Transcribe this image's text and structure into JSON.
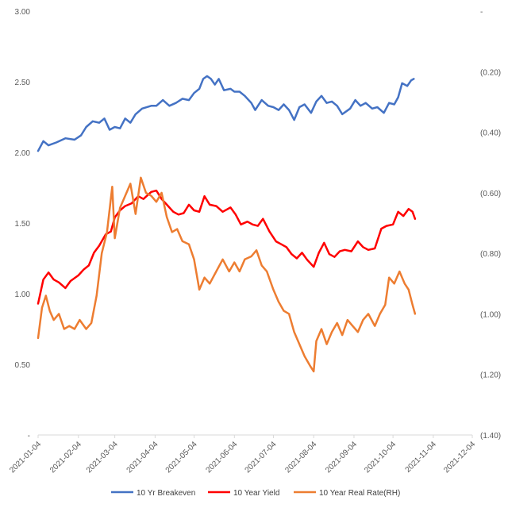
{
  "chart_data": {
    "type": "line",
    "title": "",
    "xlabel": "",
    "ylabel": "",
    "x_ticks": [
      "2021-01-04",
      "2021-02-04",
      "2021-03-04",
      "2021-04-04",
      "2021-05-04",
      "2021-06-04",
      "2021-07-04",
      "2021-08-04",
      "2021-09-04",
      "2021-10-04",
      "2021-11-04",
      "2021-12-04"
    ],
    "xlim": [
      "2021-01-04",
      "2021-12-04"
    ],
    "ylim_left": [
      0,
      3
    ],
    "ylim_right": [
      -1.4,
      0.0
    ],
    "left_ticks": [
      "3.00",
      "2.50",
      "2.00",
      "1.50",
      "1.00",
      "0.50",
      "-"
    ],
    "right_ticks": [
      "-",
      "(0.20)",
      "(0.40)",
      "(0.60)",
      "(0.80)",
      "(1.00)",
      "(1.20)",
      "(1.40)"
    ],
    "grid": false,
    "legend_position": "bottom",
    "series": [
      {
        "name": "10 Yr Breakeven",
        "axis": "left",
        "color": "#4472C4",
        "points": [
          [
            "2021-01-04",
            2.01
          ],
          [
            "2021-01-08",
            2.08
          ],
          [
            "2021-01-12",
            2.05
          ],
          [
            "2021-01-18",
            2.07
          ],
          [
            "2021-01-25",
            2.1
          ],
          [
            "2021-02-01",
            2.09
          ],
          [
            "2021-02-06",
            2.12
          ],
          [
            "2021-02-10",
            2.18
          ],
          [
            "2021-02-15",
            2.22
          ],
          [
            "2021-02-20",
            2.21
          ],
          [
            "2021-02-24",
            2.24
          ],
          [
            "2021-02-28",
            2.16
          ],
          [
            "2021-03-04",
            2.18
          ],
          [
            "2021-03-08",
            2.17
          ],
          [
            "2021-03-12",
            2.24
          ],
          [
            "2021-03-16",
            2.21
          ],
          [
            "2021-03-20",
            2.27
          ],
          [
            "2021-03-25",
            2.31
          ],
          [
            "2021-04-01",
            2.33
          ],
          [
            "2021-04-05",
            2.33
          ],
          [
            "2021-04-10",
            2.37
          ],
          [
            "2021-04-15",
            2.33
          ],
          [
            "2021-04-20",
            2.35
          ],
          [
            "2021-04-25",
            2.38
          ],
          [
            "2021-04-30",
            2.37
          ],
          [
            "2021-05-04",
            2.42
          ],
          [
            "2021-05-08",
            2.45
          ],
          [
            "2021-05-11",
            2.52
          ],
          [
            "2021-05-14",
            2.54
          ],
          [
            "2021-05-17",
            2.52
          ],
          [
            "2021-05-20",
            2.48
          ],
          [
            "2021-05-23",
            2.52
          ],
          [
            "2021-05-27",
            2.44
          ],
          [
            "2021-06-01",
            2.45
          ],
          [
            "2021-06-04",
            2.43
          ],
          [
            "2021-06-08",
            2.43
          ],
          [
            "2021-06-12",
            2.4
          ],
          [
            "2021-06-17",
            2.35
          ],
          [
            "2021-06-20",
            2.3
          ],
          [
            "2021-06-25",
            2.37
          ],
          [
            "2021-06-30",
            2.33
          ],
          [
            "2021-07-04",
            2.32
          ],
          [
            "2021-07-08",
            2.3
          ],
          [
            "2021-07-12",
            2.34
          ],
          [
            "2021-07-16",
            2.3
          ],
          [
            "2021-07-20",
            2.23
          ],
          [
            "2021-07-24",
            2.32
          ],
          [
            "2021-07-28",
            2.34
          ],
          [
            "2021-08-02",
            2.28
          ],
          [
            "2021-08-06",
            2.36
          ],
          [
            "2021-08-10",
            2.4
          ],
          [
            "2021-08-14",
            2.35
          ],
          [
            "2021-08-18",
            2.36
          ],
          [
            "2021-08-22",
            2.33
          ],
          [
            "2021-08-26",
            2.27
          ],
          [
            "2021-09-01",
            2.31
          ],
          [
            "2021-09-05",
            2.37
          ],
          [
            "2021-09-09",
            2.33
          ],
          [
            "2021-09-13",
            2.35
          ],
          [
            "2021-09-18",
            2.31
          ],
          [
            "2021-09-22",
            2.32
          ],
          [
            "2021-09-27",
            2.28
          ],
          [
            "2021-10-01",
            2.35
          ],
          [
            "2021-10-05",
            2.34
          ],
          [
            "2021-10-08",
            2.39
          ],
          [
            "2021-10-11",
            2.49
          ],
          [
            "2021-10-15",
            2.47
          ],
          [
            "2021-10-18",
            2.51
          ],
          [
            "2021-10-20",
            2.52
          ]
        ]
      },
      {
        "name": "10 Year Yield",
        "axis": "left",
        "color": "#FF0000",
        "points": [
          [
            "2021-01-04",
            0.93
          ],
          [
            "2021-01-08",
            1.1
          ],
          [
            "2021-01-12",
            1.15
          ],
          [
            "2021-01-16",
            1.1
          ],
          [
            "2021-01-20",
            1.08
          ],
          [
            "2021-01-25",
            1.04
          ],
          [
            "2021-01-29",
            1.09
          ],
          [
            "2021-02-04",
            1.13
          ],
          [
            "2021-02-08",
            1.17
          ],
          [
            "2021-02-12",
            1.2
          ],
          [
            "2021-02-16",
            1.29
          ],
          [
            "2021-02-20",
            1.34
          ],
          [
            "2021-02-25",
            1.42
          ],
          [
            "2021-03-01",
            1.44
          ],
          [
            "2021-03-04",
            1.54
          ],
          [
            "2021-03-08",
            1.59
          ],
          [
            "2021-03-12",
            1.62
          ],
          [
            "2021-03-17",
            1.64
          ],
          [
            "2021-03-22",
            1.69
          ],
          [
            "2021-03-26",
            1.67
          ],
          [
            "2021-04-01",
            1.72
          ],
          [
            "2021-04-05",
            1.73
          ],
          [
            "2021-04-09",
            1.67
          ],
          [
            "2021-04-14",
            1.62
          ],
          [
            "2021-04-18",
            1.58
          ],
          [
            "2021-04-22",
            1.56
          ],
          [
            "2021-04-26",
            1.57
          ],
          [
            "2021-04-30",
            1.63
          ],
          [
            "2021-05-04",
            1.59
          ],
          [
            "2021-05-08",
            1.58
          ],
          [
            "2021-05-12",
            1.69
          ],
          [
            "2021-05-16",
            1.63
          ],
          [
            "2021-05-21",
            1.62
          ],
          [
            "2021-05-26",
            1.58
          ],
          [
            "2021-06-01",
            1.61
          ],
          [
            "2021-06-05",
            1.56
          ],
          [
            "2021-06-09",
            1.49
          ],
          [
            "2021-06-14",
            1.51
          ],
          [
            "2021-06-18",
            1.49
          ],
          [
            "2021-06-22",
            1.48
          ],
          [
            "2021-06-26",
            1.53
          ],
          [
            "2021-07-01",
            1.44
          ],
          [
            "2021-07-06",
            1.37
          ],
          [
            "2021-07-10",
            1.35
          ],
          [
            "2021-07-14",
            1.33
          ],
          [
            "2021-07-18",
            1.28
          ],
          [
            "2021-07-22",
            1.25
          ],
          [
            "2021-07-26",
            1.29
          ],
          [
            "2021-07-30",
            1.24
          ],
          [
            "2021-08-04",
            1.19
          ],
          [
            "2021-08-08",
            1.29
          ],
          [
            "2021-08-12",
            1.36
          ],
          [
            "2021-08-16",
            1.28
          ],
          [
            "2021-08-20",
            1.26
          ],
          [
            "2021-08-24",
            1.3
          ],
          [
            "2021-08-28",
            1.31
          ],
          [
            "2021-09-02",
            1.3
          ],
          [
            "2021-09-07",
            1.37
          ],
          [
            "2021-09-11",
            1.33
          ],
          [
            "2021-09-15",
            1.31
          ],
          [
            "2021-09-20",
            1.32
          ],
          [
            "2021-09-25",
            1.46
          ],
          [
            "2021-09-29",
            1.48
          ],
          [
            "2021-10-04",
            1.49
          ],
          [
            "2021-10-08",
            1.58
          ],
          [
            "2021-10-12",
            1.55
          ],
          [
            "2021-10-16",
            1.6
          ],
          [
            "2021-10-19",
            1.58
          ],
          [
            "2021-10-21",
            1.53
          ]
        ]
      },
      {
        "name": "10 Year Real Rate(RH)",
        "axis": "right",
        "color": "#ED7D31",
        "points": [
          [
            "2021-01-04",
            -1.08
          ],
          [
            "2021-01-07",
            -0.98
          ],
          [
            "2021-01-10",
            -0.94
          ],
          [
            "2021-01-13",
            -0.99
          ],
          [
            "2021-01-16",
            -1.02
          ],
          [
            "2021-01-20",
            -1.0
          ],
          [
            "2021-01-24",
            -1.05
          ],
          [
            "2021-01-28",
            -1.04
          ],
          [
            "2021-02-01",
            -1.05
          ],
          [
            "2021-02-05",
            -1.02
          ],
          [
            "2021-02-10",
            -1.05
          ],
          [
            "2021-02-14",
            -1.03
          ],
          [
            "2021-02-18",
            -0.94
          ],
          [
            "2021-02-22",
            -0.8
          ],
          [
            "2021-02-26",
            -0.73
          ],
          [
            "2021-03-02",
            -0.58
          ],
          [
            "2021-03-04",
            -0.75
          ],
          [
            "2021-03-08",
            -0.65
          ],
          [
            "2021-03-12",
            -0.61
          ],
          [
            "2021-03-16",
            -0.57
          ],
          [
            "2021-03-20",
            -0.67
          ],
          [
            "2021-03-24",
            -0.55
          ],
          [
            "2021-03-28",
            -0.6
          ],
          [
            "2021-04-01",
            -0.61
          ],
          [
            "2021-04-05",
            -0.63
          ],
          [
            "2021-04-09",
            -0.6
          ],
          [
            "2021-04-13",
            -0.68
          ],
          [
            "2021-04-17",
            -0.73
          ],
          [
            "2021-04-21",
            -0.72
          ],
          [
            "2021-04-25",
            -0.76
          ],
          [
            "2021-04-30",
            -0.77
          ],
          [
            "2021-05-04",
            -0.82
          ],
          [
            "2021-05-08",
            -0.92
          ],
          [
            "2021-05-12",
            -0.88
          ],
          [
            "2021-05-16",
            -0.9
          ],
          [
            "2021-05-21",
            -0.86
          ],
          [
            "2021-05-26",
            -0.82
          ],
          [
            "2021-05-31",
            -0.86
          ],
          [
            "2021-06-04",
            -0.83
          ],
          [
            "2021-06-08",
            -0.86
          ],
          [
            "2021-06-12",
            -0.82
          ],
          [
            "2021-06-17",
            -0.81
          ],
          [
            "2021-06-21",
            -0.79
          ],
          [
            "2021-06-25",
            -0.84
          ],
          [
            "2021-06-29",
            -0.86
          ],
          [
            "2021-07-04",
            -0.92
          ],
          [
            "2021-07-08",
            -0.96
          ],
          [
            "2021-07-12",
            -0.99
          ],
          [
            "2021-07-16",
            -1.0
          ],
          [
            "2021-07-20",
            -1.06
          ],
          [
            "2021-07-24",
            -1.1
          ],
          [
            "2021-07-28",
            -1.14
          ],
          [
            "2021-08-01",
            -1.17
          ],
          [
            "2021-08-04",
            -1.19
          ],
          [
            "2021-08-06",
            -1.09
          ],
          [
            "2021-08-10",
            -1.05
          ],
          [
            "2021-08-14",
            -1.1
          ],
          [
            "2021-08-18",
            -1.06
          ],
          [
            "2021-08-22",
            -1.03
          ],
          [
            "2021-08-26",
            -1.07
          ],
          [
            "2021-08-30",
            -1.02
          ],
          [
            "2021-09-03",
            -1.04
          ],
          [
            "2021-09-07",
            -1.06
          ],
          [
            "2021-09-11",
            -1.02
          ],
          [
            "2021-09-15",
            -1.0
          ],
          [
            "2021-09-20",
            -1.04
          ],
          [
            "2021-09-24",
            -1.0
          ],
          [
            "2021-09-28",
            -0.97
          ],
          [
            "2021-10-01",
            -0.88
          ],
          [
            "2021-10-05",
            -0.9
          ],
          [
            "2021-10-09",
            -0.86
          ],
          [
            "2021-10-13",
            -0.9
          ],
          [
            "2021-10-16",
            -0.92
          ],
          [
            "2021-10-19",
            -0.97
          ],
          [
            "2021-10-21",
            -1.0
          ]
        ]
      }
    ]
  }
}
